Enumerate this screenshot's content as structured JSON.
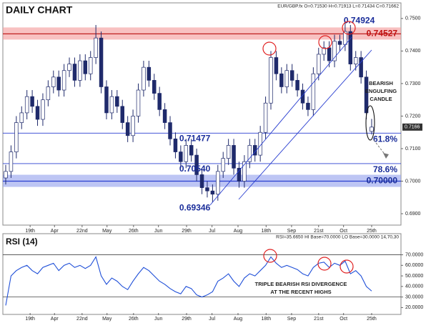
{
  "chart_data": [
    {
      "type": "candlestick",
      "title": "DAILY CHART",
      "info": "EUR/GBP.fx O=0.71530 H=0.71913 L=0.71434 C=0.71662",
      "open": [
        0.701,
        0.703,
        0.709,
        0.718,
        0.721,
        0.726,
        0.723,
        0.719,
        0.725,
        0.729,
        0.732,
        0.728,
        0.734,
        0.736,
        0.731,
        0.737,
        0.733,
        0.738,
        0.744,
        0.729,
        0.721,
        0.726,
        0.723,
        0.718,
        0.714,
        0.72,
        0.728,
        0.735,
        0.731,
        0.727,
        0.722,
        0.718,
        0.713,
        0.709,
        0.706,
        0.711,
        0.708,
        0.702,
        0.698,
        0.697,
        0.696,
        0.703,
        0.707,
        0.711,
        0.704,
        0.7,
        0.706,
        0.711,
        0.708,
        0.715,
        0.724,
        0.738,
        0.733,
        0.729,
        0.734,
        0.731,
        0.728,
        0.724,
        0.722,
        0.733,
        0.739,
        0.741,
        0.737,
        0.743,
        0.742,
        0.746,
        0.736,
        0.738,
        0.732,
        0.7153
      ],
      "high": [
        0.705,
        0.711,
        0.72,
        0.723,
        0.728,
        0.728,
        0.725,
        0.727,
        0.731,
        0.734,
        0.734,
        0.736,
        0.738,
        0.738,
        0.739,
        0.739,
        0.74,
        0.748,
        0.746,
        0.731,
        0.728,
        0.728,
        0.725,
        0.72,
        0.722,
        0.73,
        0.737,
        0.737,
        0.733,
        0.729,
        0.724,
        0.72,
        0.715,
        0.711,
        0.713,
        0.713,
        0.71,
        0.704,
        0.7,
        0.699,
        0.705,
        0.709,
        0.713,
        0.713,
        0.706,
        0.708,
        0.713,
        0.713,
        0.717,
        0.726,
        0.74,
        0.74,
        0.735,
        0.736,
        0.736,
        0.733,
        0.73,
        0.726,
        0.735,
        0.741,
        0.743,
        0.743,
        0.745,
        0.745,
        0.74924,
        0.748,
        0.74,
        0.74,
        0.734,
        0.71913
      ],
      "low": [
        0.699,
        0.701,
        0.707,
        0.716,
        0.719,
        0.721,
        0.717,
        0.717,
        0.723,
        0.727,
        0.726,
        0.726,
        0.732,
        0.729,
        0.729,
        0.731,
        0.731,
        0.736,
        0.727,
        0.719,
        0.719,
        0.721,
        0.716,
        0.712,
        0.712,
        0.718,
        0.726,
        0.729,
        0.725,
        0.72,
        0.716,
        0.711,
        0.707,
        0.704,
        0.704,
        0.706,
        0.7,
        0.696,
        0.695,
        0.69346,
        0.694,
        0.701,
        0.705,
        0.702,
        0.698,
        0.698,
        0.704,
        0.706,
        0.706,
        0.713,
        0.722,
        0.731,
        0.727,
        0.727,
        0.729,
        0.726,
        0.722,
        0.72,
        0.72,
        0.731,
        0.737,
        0.735,
        0.735,
        0.74,
        0.74,
        0.734,
        0.734,
        0.73,
        0.719,
        0.71434
      ],
      "close": [
        0.703,
        0.709,
        0.718,
        0.721,
        0.726,
        0.723,
        0.719,
        0.725,
        0.729,
        0.732,
        0.728,
        0.734,
        0.736,
        0.731,
        0.737,
        0.733,
        0.738,
        0.744,
        0.729,
        0.721,
        0.726,
        0.723,
        0.718,
        0.714,
        0.72,
        0.728,
        0.735,
        0.731,
        0.727,
        0.722,
        0.718,
        0.713,
        0.709,
        0.706,
        0.711,
        0.708,
        0.702,
        0.698,
        0.697,
        0.696,
        0.703,
        0.707,
        0.711,
        0.704,
        0.7,
        0.706,
        0.711,
        0.708,
        0.715,
        0.724,
        0.738,
        0.733,
        0.729,
        0.734,
        0.731,
        0.728,
        0.724,
        0.722,
        0.733,
        0.739,
        0.741,
        0.737,
        0.743,
        0.742,
        0.746,
        0.736,
        0.738,
        0.732,
        0.721,
        0.71662
      ],
      "up_color": "#ffffff",
      "down_color": "#1f2a6b",
      "ylim": [
        0.6865,
        0.7548
      ],
      "yticks": [
        {
          "value": 0.69,
          "label": "0.6900"
        },
        {
          "value": 0.7,
          "label": "0.7000"
        },
        {
          "value": 0.71,
          "label": "0.7100"
        },
        {
          "value": 0.72,
          "label": "0.7200"
        },
        {
          "value": 0.73,
          "label": "0.7300"
        },
        {
          "value": 0.74,
          "label": "0.7400"
        },
        {
          "value": 0.75,
          "label": "0.7500"
        }
      ],
      "xticks": [
        {
          "value": 4.6,
          "label": "19th"
        },
        {
          "value": 9.2,
          "label": "Apr"
        },
        {
          "value": 14.4,
          "label": "22nd"
        },
        {
          "value": 19.1,
          "label": "May"
        },
        {
          "value": 24.1,
          "label": "26th"
        },
        {
          "value": 28.8,
          "label": "Jun"
        },
        {
          "value": 34.1,
          "label": "29th"
        },
        {
          "value": 38.9,
          "label": "Jul"
        },
        {
          "value": 43.8,
          "label": "Aug"
        },
        {
          "value": 49.1,
          "label": "18th"
        },
        {
          "value": 53.9,
          "label": "Sep"
        },
        {
          "value": 59,
          "label": "21st"
        },
        {
          "value": 63.7,
          "label": "Oct"
        },
        {
          "value": 69,
          "label": "25th"
        }
      ],
      "last_price": {
        "value": 0.71662,
        "label": "0.7166"
      },
      "levels": [
        {
          "value": 0.74527,
          "label": "0.74527",
          "band": "#f4a0a0"
        },
        {
          "value": 0.71477,
          "label": "61.8%"
        },
        {
          "value": 0.7054,
          "label": "78.6%"
        },
        {
          "value": 0.7,
          "label": "0.70000",
          "band": "#9aa6ee"
        }
      ],
      "price_labels": [
        {
          "value": 0.74924,
          "label": "0.74924",
          "index": 64
        },
        {
          "value": 0.71477,
          "label": "0.71477",
          "index": 33
        },
        {
          "value": 0.7054,
          "label": "0.70540",
          "index": 33
        },
        {
          "value": 0.69346,
          "label": "0.69346",
          "index": 33
        }
      ],
      "annotation": [
        "BEARISH",
        "ENGULFING",
        "CANDLE"
      ]
    },
    {
      "type": "line",
      "title": "RSI (14)",
      "info": "RSI=35.6650 HI Base=70.0000 LO Base=30.0000  14,70,30",
      "color": "#1f4fd8",
      "values": [
        22,
        50,
        55,
        58,
        60,
        55,
        52,
        58,
        60,
        62,
        55,
        60,
        62,
        58,
        60,
        57,
        60,
        68,
        50,
        42,
        48,
        45,
        40,
        37,
        45,
        52,
        58,
        55,
        50,
        45,
        42,
        38,
        35,
        33,
        40,
        38,
        32,
        30,
        32,
        35,
        45,
        48,
        52,
        45,
        40,
        48,
        52,
        50,
        55,
        60,
        68,
        62,
        58,
        60,
        58,
        56,
        52,
        50,
        58,
        62,
        63,
        58,
        62,
        60,
        64,
        52,
        55,
        50,
        40,
        35.665
      ],
      "ylim": [
        13.5,
        90
      ],
      "yticks": [
        {
          "value": 20,
          "label": "20.0000"
        },
        {
          "value": 30,
          "label": "30.0000"
        },
        {
          "value": 40,
          "label": "40.0000"
        },
        {
          "value": 50,
          "label": "50.0000"
        },
        {
          "value": 60,
          "label": "60.0000"
        },
        {
          "value": 70,
          "label": "70.0000"
        }
      ],
      "hi_base": 70,
      "lo_base": 30,
      "annotation": [
        "TRIPLE BEARISH RSI DIVERGENCE",
        "AT THE RECENT HIGHS"
      ]
    }
  ]
}
